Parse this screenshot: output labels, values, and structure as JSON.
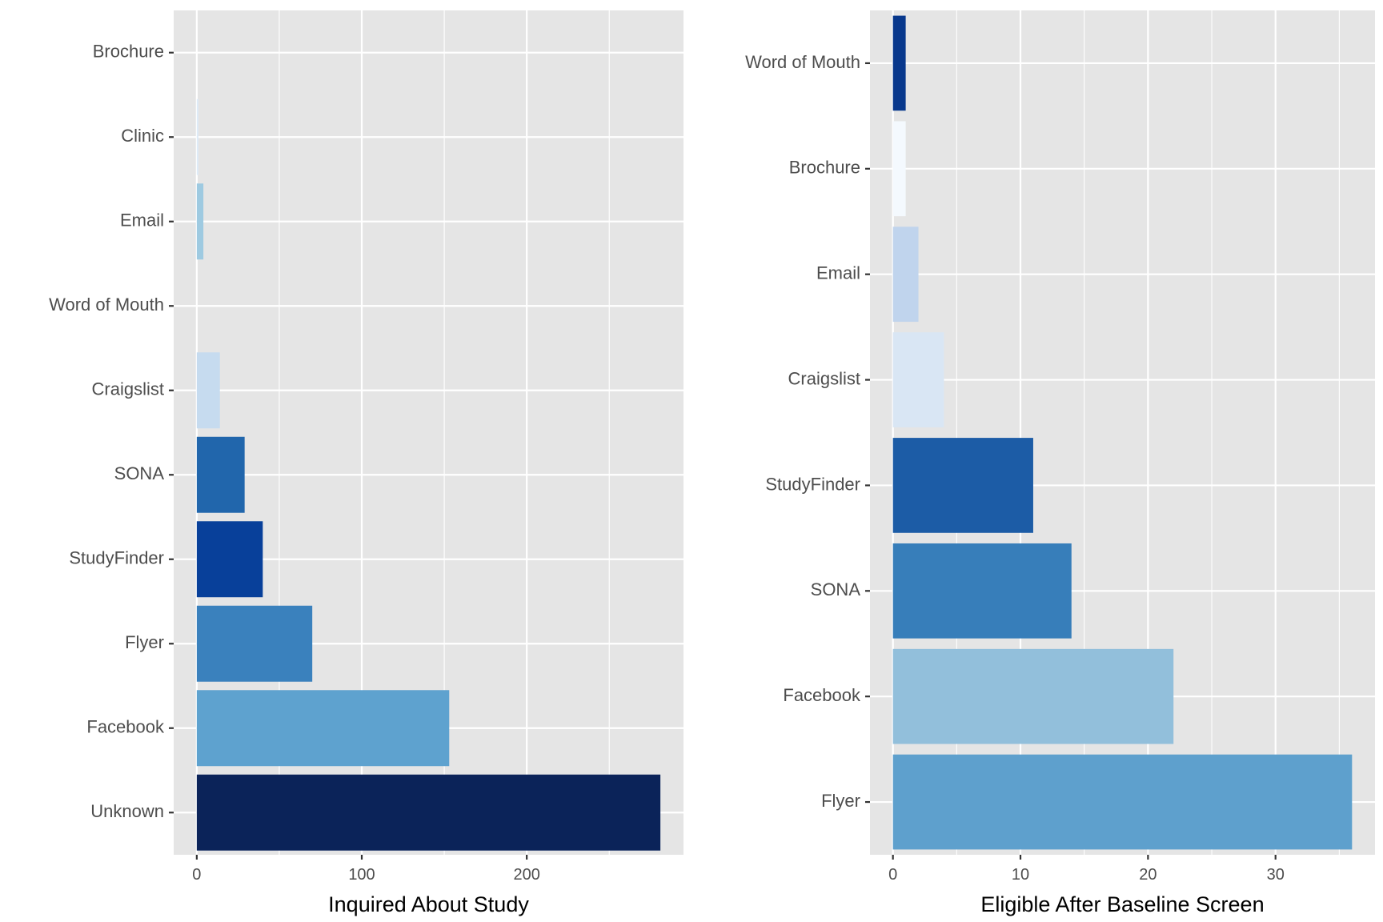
{
  "chart_data": [
    {
      "type": "bar",
      "orientation": "horizontal",
      "title": "",
      "xlabel": "Inquired About Study",
      "ylabel": "",
      "xlim": [
        -14,
        295
      ],
      "xticks": [
        0,
        100,
        200
      ],
      "grid": true,
      "legend": "none",
      "categories": [
        "Brochure",
        "Clinic",
        "Email",
        "Word of Mouth",
        "Craigslist",
        "SONA",
        "StudyFinder",
        "Flyer",
        "Facebook",
        "Unknown"
      ],
      "values": [
        0,
        1,
        4,
        0,
        14,
        29,
        40,
        70,
        153,
        281
      ],
      "colors": [
        "#F7FBFF",
        "#DEEBF7",
        "#9ECAE1",
        "#08519C",
        "#C6DBEF",
        "#2166AC",
        "#08409A",
        "#3A81BD",
        "#5EA2CF",
        "#0B2359"
      ]
    },
    {
      "type": "bar",
      "orientation": "horizontal",
      "title": "",
      "xlabel": "Eligible After Baseline Screen",
      "ylabel": "",
      "xlim": [
        -1.8,
        37.8
      ],
      "xticks": [
        0,
        10,
        20,
        30
      ],
      "grid": true,
      "legend": "none",
      "categories": [
        "Word of Mouth",
        "Brochure",
        "Email",
        "Craigslist",
        "StudyFinder",
        "SONA",
        "Facebook",
        "Flyer"
      ],
      "values": [
        1,
        1,
        2,
        4,
        11,
        14,
        22,
        36
      ],
      "colors": [
        "#08388C",
        "#F4F9FE",
        "#C0D4ED",
        "#D9E6F4",
        "#1C5CA6",
        "#377EBA",
        "#92BFDB",
        "#5EA0CD"
      ]
    }
  ]
}
